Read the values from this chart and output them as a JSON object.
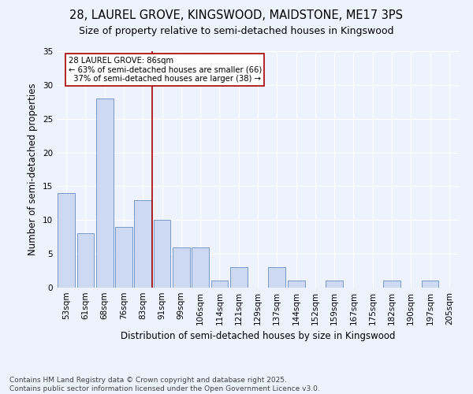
{
  "title1": "28, LAUREL GROVE, KINGSWOOD, MAIDSTONE, ME17 3PS",
  "title2": "Size of property relative to semi-detached houses in Kingswood",
  "xlabel": "Distribution of semi-detached houses by size in Kingswood",
  "ylabel": "Number of semi-detached properties",
  "categories": [
    "53sqm",
    "61sqm",
    "68sqm",
    "76sqm",
    "83sqm",
    "91sqm",
    "99sqm",
    "106sqm",
    "114sqm",
    "121sqm",
    "129sqm",
    "137sqm",
    "144sqm",
    "152sqm",
    "159sqm",
    "167sqm",
    "175sqm",
    "182sqm",
    "190sqm",
    "197sqm",
    "205sqm"
  ],
  "values": [
    14,
    8,
    28,
    9,
    13,
    10,
    6,
    6,
    1,
    3,
    0,
    3,
    1,
    0,
    1,
    0,
    0,
    1,
    0,
    1,
    0
  ],
  "bar_color": "#ccd9f0",
  "bar_edge_color": "#7799cc",
  "background_color": "#eef2fc",
  "vline_index": 4.5,
  "vline_color": "#aa0000",
  "annotation_text": "28 LAUREL GROVE: 86sqm\n← 63% of semi-detached houses are smaller (66)\n  37% of semi-detached houses are larger (38) →",
  "annotation_box_color": "white",
  "annotation_box_edge": "#aa0000",
  "ylim": [
    0,
    35
  ],
  "yticks": [
    0,
    5,
    10,
    15,
    20,
    25,
    30,
    35
  ],
  "footnote": "Contains HM Land Registry data © Crown copyright and database right 2025.\nContains public sector information licensed under the Open Government Licence v3.0.",
  "title1_fontsize": 10.5,
  "title2_fontsize": 9,
  "xlabel_fontsize": 8.5,
  "ylabel_fontsize": 8.5,
  "tick_fontsize": 7.5,
  "footnote_fontsize": 6.5
}
